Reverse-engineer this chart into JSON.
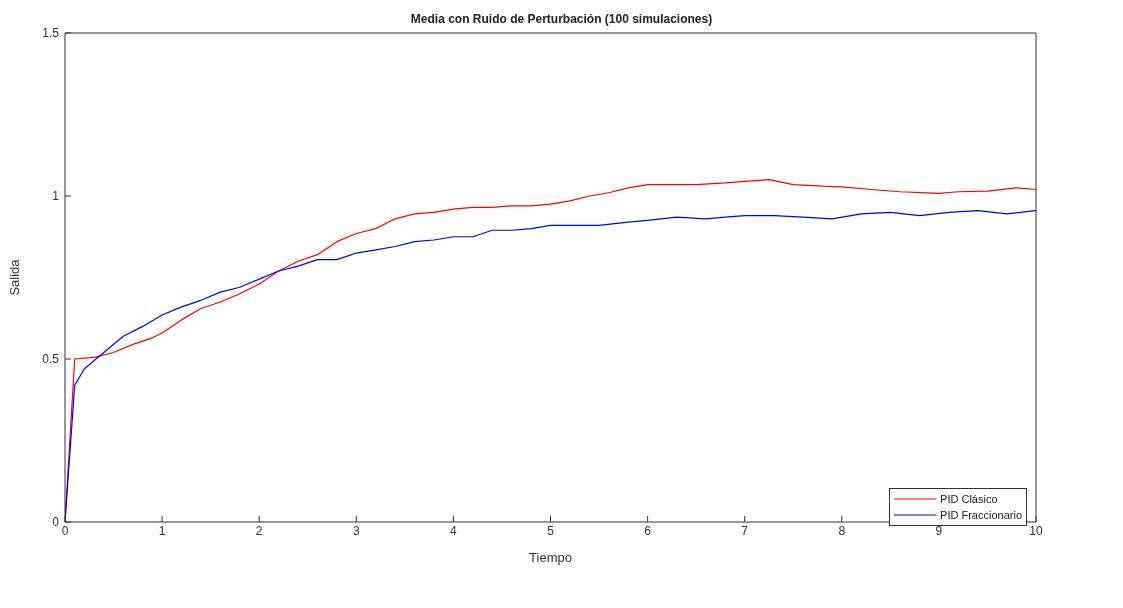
{
  "chart_data": {
    "type": "line",
    "title": "Media con Ruido de Perturbación (100 simulaciones)",
    "xlabel": "Tiempo",
    "ylabel": "Salida",
    "xlim": [
      0,
      10
    ],
    "xticks": [
      0,
      1,
      2,
      3,
      4,
      5,
      6,
      7,
      8,
      9,
      10
    ],
    "ylim": [
      0,
      1.5
    ],
    "yticks": [
      0,
      0.5,
      1,
      1.5
    ],
    "grid": false,
    "legend": "bottom right",
    "marker": "none",
    "line_style": "solid",
    "series": [
      {
        "name": "PID Clásico",
        "color": "#ff0000",
        "x": [
          0,
          0.1,
          0.3,
          0.5,
          0.7,
          0.9,
          1.0,
          1.2,
          1.4,
          1.6,
          1.8,
          2.0,
          2.2,
          2.4,
          2.6,
          2.8,
          3.0,
          3.2,
          3.4,
          3.6,
          3.8,
          4.0,
          4.2,
          4.4,
          4.6,
          4.8,
          5.0,
          5.2,
          5.4,
          5.6,
          5.8,
          6.0,
          6.2,
          6.5,
          6.8,
          7.0,
          7.25,
          7.5,
          7.8,
          8.0,
          8.3,
          8.6,
          9.0,
          9.2,
          9.5,
          9.8,
          10
        ],
        "values": [
          0,
          0.5,
          0.505,
          0.52,
          0.545,
          0.565,
          0.58,
          0.62,
          0.655,
          0.675,
          0.7,
          0.73,
          0.77,
          0.8,
          0.82,
          0.86,
          0.885,
          0.9,
          0.93,
          0.945,
          0.95,
          0.96,
          0.965,
          0.965,
          0.97,
          0.97,
          0.975,
          0.985,
          1.0,
          1.01,
          1.025,
          1.035,
          1.035,
          1.035,
          1.04,
          1.045,
          1.05,
          1.035,
          1.03,
          1.028,
          1.02,
          1.013,
          1.008,
          1.013,
          1.015,
          1.025,
          1.02
        ]
      },
      {
        "name": "PID Fraccionario",
        "color": "#0000ff",
        "x": [
          0,
          0.1,
          0.2,
          0.4,
          0.6,
          0.8,
          1.0,
          1.2,
          1.4,
          1.6,
          1.8,
          2.0,
          2.2,
          2.4,
          2.6,
          2.8,
          3.0,
          3.2,
          3.4,
          3.6,
          3.8,
          4.0,
          4.2,
          4.4,
          4.6,
          4.8,
          5.0,
          5.2,
          5.5,
          5.8,
          6.0,
          6.3,
          6.6,
          6.8,
          7.0,
          7.3,
          7.6,
          7.9,
          8.2,
          8.5,
          8.8,
          9.1,
          9.4,
          9.7,
          10
        ],
        "values": [
          0,
          0.42,
          0.47,
          0.52,
          0.57,
          0.6,
          0.635,
          0.66,
          0.68,
          0.705,
          0.72,
          0.745,
          0.77,
          0.785,
          0.805,
          0.805,
          0.825,
          0.835,
          0.845,
          0.86,
          0.865,
          0.875,
          0.875,
          0.895,
          0.895,
          0.9,
          0.91,
          0.91,
          0.91,
          0.92,
          0.925,
          0.935,
          0.93,
          0.935,
          0.94,
          0.94,
          0.935,
          0.93,
          0.945,
          0.95,
          0.94,
          0.95,
          0.955,
          0.945,
          0.955
        ]
      }
    ]
  }
}
